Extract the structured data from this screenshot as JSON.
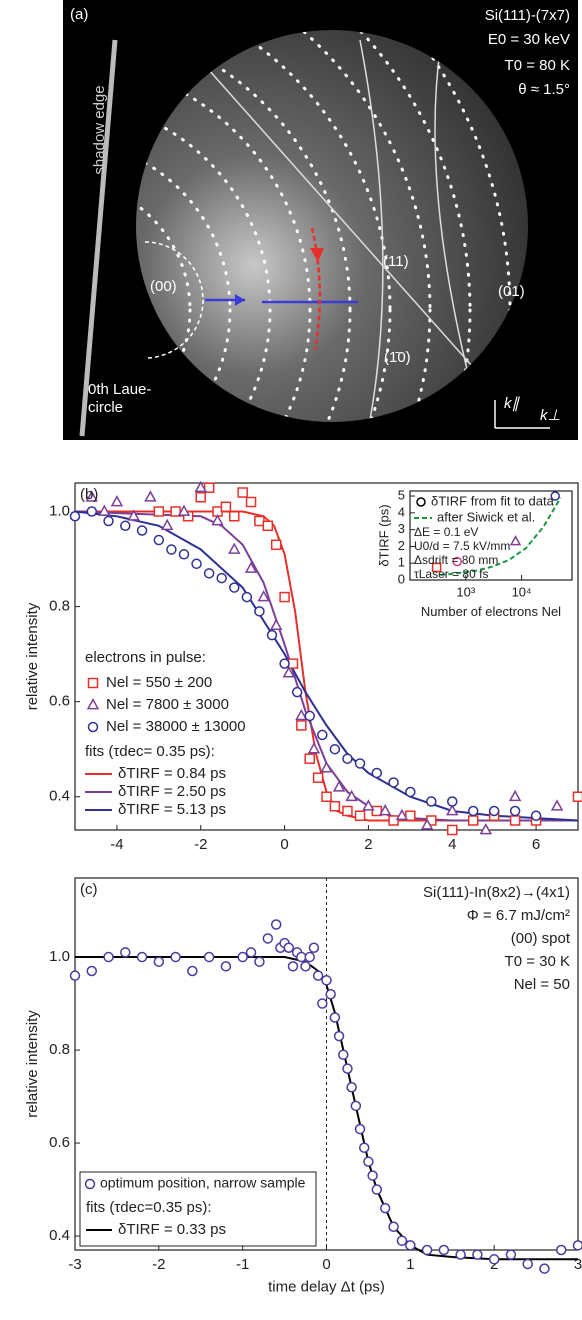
{
  "image": {
    "label": "(a)",
    "info": [
      "Si(111)-(7x7)",
      "E0 = 30 keV",
      "T0 = 80 K",
      "θ ≈ 1.5°"
    ],
    "shadow_edge": "shadow edge",
    "spots": [
      "(00)",
      "(11)",
      "(01)",
      "(1̄0)"
    ],
    "laue": [
      "0th Laue-",
      "circle"
    ],
    "k_par": "k∥",
    "k_perp": "k⊥"
  },
  "chart_data": [
    {
      "type": "scatter",
      "label": "(b)",
      "ylabel": "relative intensity",
      "xlim": [
        -5,
        7
      ],
      "ylim": [
        0.33,
        1.06
      ],
      "xticks": [
        -4,
        -2,
        0,
        2,
        4,
        6
      ],
      "yticks": [
        {
          "value": 0.4,
          "label": "0.4"
        },
        {
          "value": 0.6,
          "label": "0.6"
        },
        {
          "value": 0.8,
          "label": "0.8"
        },
        {
          "value": 1,
          "label": "1.0"
        }
      ],
      "legend_title": "electrons in pulse:",
      "fit_legend_title": "fits (τdec= 0.35 ps):",
      "series": [
        {
          "name": "Nel = 550 ± 200",
          "color": "#e8302a",
          "marker": "square",
          "x": [
            -3.0,
            -2.6,
            -2.3,
            -2.0,
            -1.8,
            -1.6,
            -1.4,
            -1.2,
            -1.0,
            -0.8,
            -0.6,
            -0.4,
            -0.2,
            0.0,
            0.2,
            0.4,
            0.6,
            0.8,
            1.0,
            1.2,
            1.5,
            1.8,
            2.2,
            2.6,
            3.0,
            3.5,
            4.0,
            4.5,
            5.0,
            5.5,
            6.0,
            7.0
          ],
          "values": [
            1.0,
            1.0,
            0.99,
            1.03,
            1.05,
            1.0,
            1.01,
            0.99,
            1.04,
            1.02,
            0.98,
            0.97,
            0.93,
            0.82,
            0.68,
            0.55,
            0.48,
            0.44,
            0.4,
            0.38,
            0.37,
            0.36,
            0.37,
            0.35,
            0.36,
            0.35,
            0.33,
            0.35,
            0.36,
            0.35,
            0.35,
            0.4
          ]
        },
        {
          "name": "Nel = 7800 ± 3000",
          "color": "#7b3f98",
          "marker": "triangle",
          "x": [
            -4.6,
            -4.3,
            -4.0,
            -3.6,
            -3.2,
            -2.8,
            -2.4,
            -2.0,
            -1.6,
            -1.2,
            -0.8,
            -0.5,
            -0.2,
            0.1,
            0.4,
            0.7,
            1.0,
            1.3,
            1.6,
            2.0,
            2.4,
            2.8,
            3.4,
            4.0,
            4.8,
            5.5,
            6.5
          ],
          "values": [
            1.03,
            1.0,
            1.02,
            0.99,
            1.03,
            0.97,
            1.0,
            1.05,
            0.98,
            0.92,
            0.88,
            0.82,
            0.76,
            0.66,
            0.57,
            0.5,
            0.46,
            0.42,
            0.4,
            0.38,
            0.37,
            0.36,
            0.34,
            0.37,
            0.33,
            0.4,
            0.38
          ]
        },
        {
          "name": "Nel = 38000 ± 13000",
          "color": "#2e3192",
          "marker": "circle",
          "x": [
            -5.0,
            -4.6,
            -4.2,
            -3.8,
            -3.4,
            -3.0,
            -2.7,
            -2.4,
            -2.1,
            -1.8,
            -1.5,
            -1.2,
            -0.9,
            -0.6,
            -0.3,
            0.0,
            0.3,
            0.6,
            0.9,
            1.2,
            1.5,
            1.8,
            2.2,
            2.6,
            3.0,
            3.5,
            4.0,
            4.5,
            5.0,
            5.5,
            6.0
          ],
          "values": [
            0.99,
            1.0,
            0.98,
            0.97,
            0.96,
            0.94,
            0.92,
            0.91,
            0.89,
            0.87,
            0.86,
            0.84,
            0.82,
            0.79,
            0.74,
            0.68,
            0.62,
            0.57,
            0.53,
            0.5,
            0.48,
            0.47,
            0.45,
            0.43,
            0.41,
            0.39,
            0.39,
            0.37,
            0.37,
            0.37,
            0.36
          ]
        }
      ],
      "fits": [
        {
          "name": "δTIRF = 0.84 ps",
          "color": "#e8302a",
          "x": [
            -5,
            -1,
            -0.5,
            -0.25,
            0,
            0.25,
            0.5,
            0.75,
            1,
            1.25,
            1.5,
            2,
            3,
            7
          ],
          "values": [
            1.0,
            1.0,
            0.99,
            0.97,
            0.91,
            0.79,
            0.62,
            0.49,
            0.41,
            0.37,
            0.36,
            0.35,
            0.35,
            0.35
          ]
        },
        {
          "name": "δTIRF = 2.50 ps",
          "color": "#7b3f98",
          "x": [
            -5,
            -2,
            -1.5,
            -1,
            -0.5,
            0,
            0.5,
            1,
            1.5,
            2,
            2.5,
            3,
            4,
            7
          ],
          "values": [
            1.0,
            0.99,
            0.97,
            0.93,
            0.85,
            0.72,
            0.58,
            0.47,
            0.41,
            0.38,
            0.36,
            0.355,
            0.35,
            0.35
          ]
        },
        {
          "name": "δTIRF = 5.13 ps",
          "color": "#2e3192",
          "x": [
            -5,
            -4,
            -3,
            -2,
            -1,
            0,
            0.5,
            1,
            1.5,
            2,
            3,
            4,
            5,
            6,
            7
          ],
          "values": [
            1.0,
            0.99,
            0.97,
            0.92,
            0.84,
            0.7,
            0.62,
            0.55,
            0.49,
            0.45,
            0.4,
            0.37,
            0.36,
            0.355,
            0.35
          ]
        }
      ]
    },
    {
      "type": "scatter",
      "log_x": true,
      "ylabel": "δTIRF (ps)",
      "xlabel": "Number of electrons Nel",
      "xlim": [
        100,
        80000
      ],
      "ylim": [
        0,
        5.3
      ],
      "xticks": [
        {
          "value": 1000,
          "label": "10³"
        },
        {
          "value": 10000,
          "label": "10⁴"
        }
      ],
      "yticks": [
        0,
        1,
        2,
        3,
        4,
        5
      ],
      "annotations": [
        "ΔE = 0.1 eV",
        "U0/d = 7.5 kV/mm",
        "Δsdrift = 80 mm",
        "τLaser = 80 fs"
      ],
      "series": [
        {
          "name": "δTIRF from fit to data",
          "color": "#000000",
          "marker": "circle",
          "point_markers": [
            "square",
            "circle",
            "triangle",
            "circle"
          ],
          "point_colors": [
            "#e8302a",
            "#e0338a",
            "#7b3f98",
            "#2e3192"
          ],
          "x": [
            300,
            700,
            7800,
            40000
          ],
          "values": [
            0.75,
            1.1,
            2.3,
            5.0
          ]
        }
      ],
      "fits": [
        {
          "name": "after Siwick et al.",
          "color": "#1a9641",
          "dashed": true,
          "x": [
            350,
            700,
            1500,
            3000,
            6000,
            12000,
            25000,
            50000
          ],
          "values": [
            0.3,
            0.4,
            0.55,
            0.8,
            1.2,
            1.9,
            3.2,
            4.9
          ]
        }
      ]
    },
    {
      "type": "scatter",
      "label": "(c)",
      "ylabel": "relative intensity",
      "xlabel": "time delay Δt (ps)",
      "xlim": [
        -3,
        3
      ],
      "ylim": [
        0.37,
        1.17
      ],
      "xticks": [
        -3,
        -2,
        -1,
        0,
        1,
        2,
        3
      ],
      "yticks": [
        {
          "value": 0.4,
          "label": "0.4"
        },
        {
          "value": 0.6,
          "label": "0.6"
        },
        {
          "value": 0.8,
          "label": "0.8"
        },
        {
          "value": 1,
          "label": "1.0"
        }
      ],
      "vline": 0,
      "annotations": [
        "Si(111)-In(8x2)→(4x1)",
        "Φ = 6.7 mJ/cm²",
        "(00) spot",
        "T0 = 30 K",
        "Nel = 50"
      ],
      "fit_legend_title": "fits (τdec=0.35 ps):",
      "series": [
        {
          "name": "optimum position, narrow sample",
          "color": "#4a3aa0",
          "marker": "circle",
          "x": [
            -3.0,
            -2.8,
            -2.6,
            -2.4,
            -2.2,
            -2.0,
            -1.8,
            -1.6,
            -1.4,
            -1.2,
            -1.0,
            -0.9,
            -0.8,
            -0.7,
            -0.6,
            -0.55,
            -0.5,
            -0.45,
            -0.4,
            -0.35,
            -0.3,
            -0.25,
            -0.2,
            -0.15,
            -0.1,
            -0.05,
            0.0,
            0.05,
            0.1,
            0.15,
            0.2,
            0.25,
            0.3,
            0.35,
            0.4,
            0.45,
            0.5,
            0.55,
            0.6,
            0.7,
            0.8,
            0.9,
            1.0,
            1.2,
            1.4,
            1.6,
            1.8,
            2.0,
            2.2,
            2.4,
            2.6,
            2.8,
            3.0
          ],
          "values": [
            0.96,
            0.97,
            1.0,
            1.01,
            1.0,
            0.99,
            1.0,
            0.97,
            1.0,
            0.98,
            1.0,
            1.01,
            0.99,
            1.04,
            1.07,
            1.02,
            1.03,
            1.02,
            0.98,
            1.01,
            1.0,
            0.98,
            1.0,
            1.02,
            0.96,
            0.9,
            0.95,
            0.92,
            0.87,
            0.83,
            0.79,
            0.76,
            0.72,
            0.68,
            0.63,
            0.59,
            0.56,
            0.53,
            0.5,
            0.46,
            0.42,
            0.39,
            0.38,
            0.37,
            0.37,
            0.36,
            0.36,
            0.35,
            0.36,
            0.34,
            0.33,
            0.37,
            0.38
          ]
        }
      ],
      "fits": [
        {
          "name": "δTIRF = 0.33 ps",
          "color": "#000000",
          "x": [
            -3,
            -0.5,
            -0.25,
            -0.1,
            0,
            0.1,
            0.2,
            0.3,
            0.4,
            0.5,
            0.6,
            0.8,
            1.0,
            1.2,
            1.5,
            2,
            3
          ],
          "values": [
            1.0,
            1.0,
            0.99,
            0.97,
            0.94,
            0.88,
            0.8,
            0.72,
            0.64,
            0.56,
            0.5,
            0.42,
            0.38,
            0.36,
            0.355,
            0.35,
            0.35
          ]
        }
      ]
    }
  ]
}
